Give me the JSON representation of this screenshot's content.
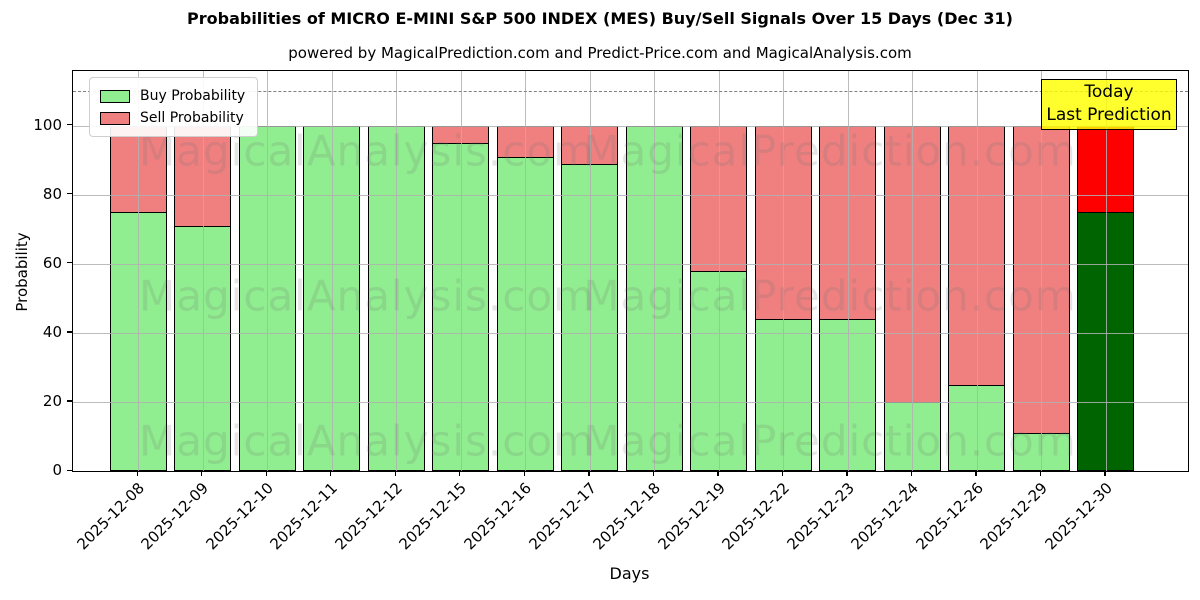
{
  "title": "Probabilities of MICRO E-MINI S&P 500 INDEX (MES) Buy/Sell Signals Over 15 Days (Dec 31)",
  "subtitle": "powered by MagicalPrediction.com and Predict-Price.com and MagicalAnalysis.com",
  "axes": {
    "xlabel": "Days",
    "ylabel": "Probability",
    "yticks": [
      0,
      20,
      40,
      60,
      80,
      100
    ],
    "ylim": [
      0,
      115.8
    ],
    "dashed_line_y": 110
  },
  "legend": {
    "items": [
      {
        "label": "Buy Probability",
        "color": "#90EE90"
      },
      {
        "label": "Sell Probability",
        "color": "#F08080"
      }
    ]
  },
  "annotation": {
    "line1": "Today",
    "line2": "Last Prediction",
    "bg_color": "#FFFF00"
  },
  "watermarks": {
    "left": "MagicalAnalysis.com",
    "right": "MagicalPrediction.com"
  },
  "chart_data": {
    "type": "bar",
    "stacked": true,
    "title": "Probabilities of MICRO E-MINI S&P 500 INDEX (MES) Buy/Sell Signals Over 15 Days (Dec 31)",
    "xlabel": "Days",
    "ylabel": "Probability",
    "ylim": [
      0,
      116
    ],
    "grid": true,
    "legend_position": "upper left",
    "categories": [
      "2025-12-08",
      "2025-12-09",
      "2025-12-10",
      "2025-12-11",
      "2025-12-12",
      "2025-12-15",
      "2025-12-16",
      "2025-12-17",
      "2025-12-18",
      "2025-12-19",
      "2025-12-22",
      "2025-12-23",
      "2025-12-24",
      "2025-12-26",
      "2025-12-29",
      "2025-12-30"
    ],
    "series": [
      {
        "name": "Buy Probability",
        "values": [
          75,
          71,
          100,
          100,
          100,
          95,
          91,
          89,
          100,
          58,
          44,
          44,
          20,
          25,
          11,
          75
        ]
      },
      {
        "name": "Sell Probability",
        "values": [
          25,
          29,
          0,
          0,
          0,
          5,
          9,
          11,
          0,
          42,
          56,
          56,
          80,
          75,
          89,
          25
        ]
      }
    ],
    "today_index": 15,
    "colors": {
      "buy": "#90EE90",
      "sell": "#F08080",
      "buy_today": "#006400",
      "sell_today": "#FF0000"
    }
  }
}
